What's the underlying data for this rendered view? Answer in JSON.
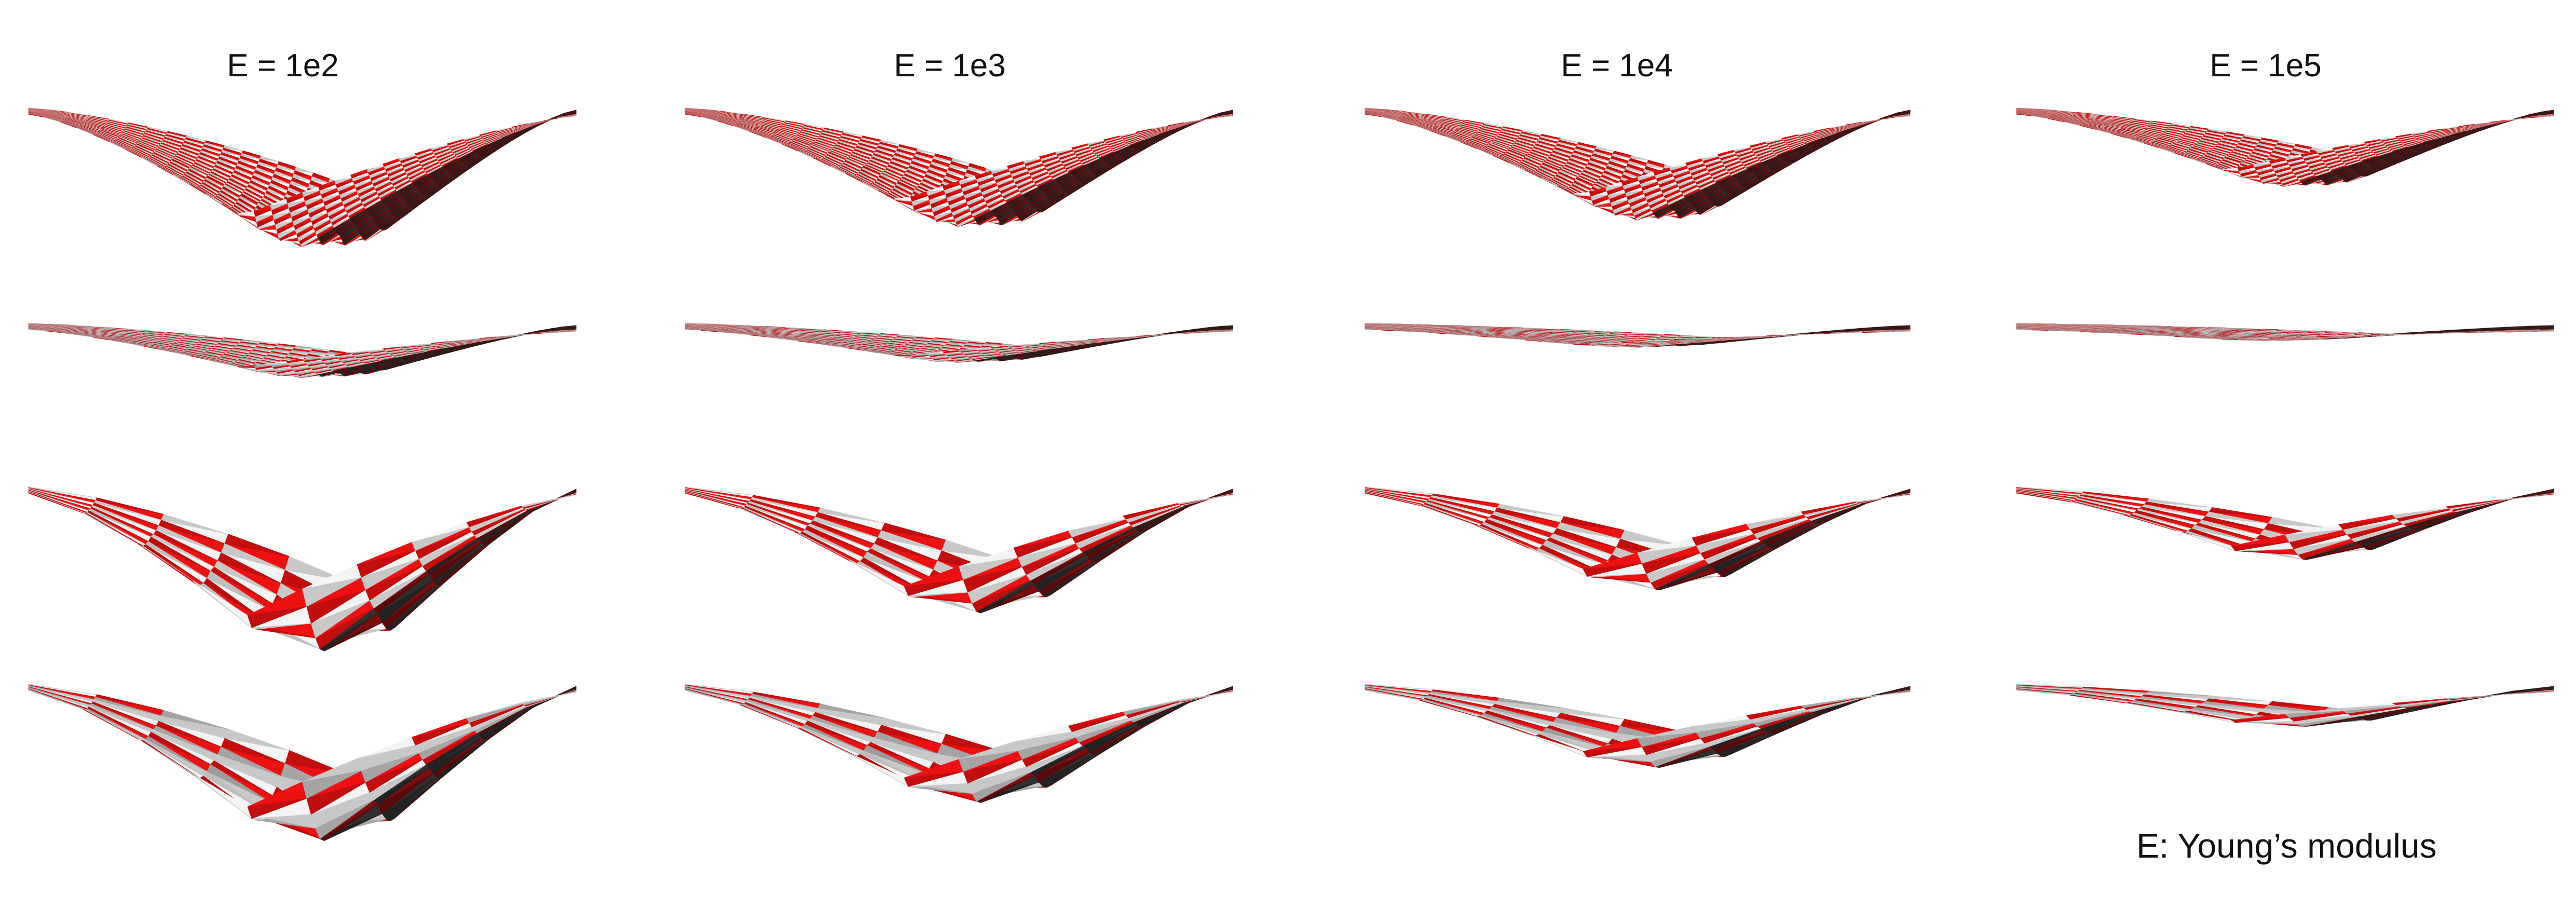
{
  "columns": [
    {
      "title": "E = 1e2"
    },
    {
      "title": "E = 1e3"
    },
    {
      "title": "E = 1e4"
    },
    {
      "title": "E = 1e5"
    }
  ],
  "caption": "E: Young’s modulus",
  "colors": {
    "red": "#ee1111",
    "light_red": "#f47a7a",
    "white": "#f4f4f4",
    "light_gray": "#c8c8c8",
    "gray": "#8a8a8a",
    "dark": "#2a2a2a",
    "dark_red": "#6e0c0c",
    "background": "#ffffff"
  },
  "rows": [
    {
      "name": "fine-checker",
      "pattern": "checker",
      "cells": 34,
      "sag_by_column": [
        1.0,
        0.85,
        0.8,
        0.55
      ]
    },
    {
      "name": "fine-stripe",
      "pattern": "stripe",
      "cells": 34,
      "sag_by_column": [
        0.65,
        0.45,
        0.25,
        0.16
      ]
    },
    {
      "name": "coarse-checker",
      "pattern": "checker",
      "cells": 10,
      "sag_by_column": [
        1.05,
        0.8,
        0.65,
        0.45
      ]
    },
    {
      "name": "coarse-stripe",
      "pattern": "stripe",
      "cells": 10,
      "sag_by_column": [
        1.0,
        0.75,
        0.52,
        0.25
      ]
    }
  ]
}
